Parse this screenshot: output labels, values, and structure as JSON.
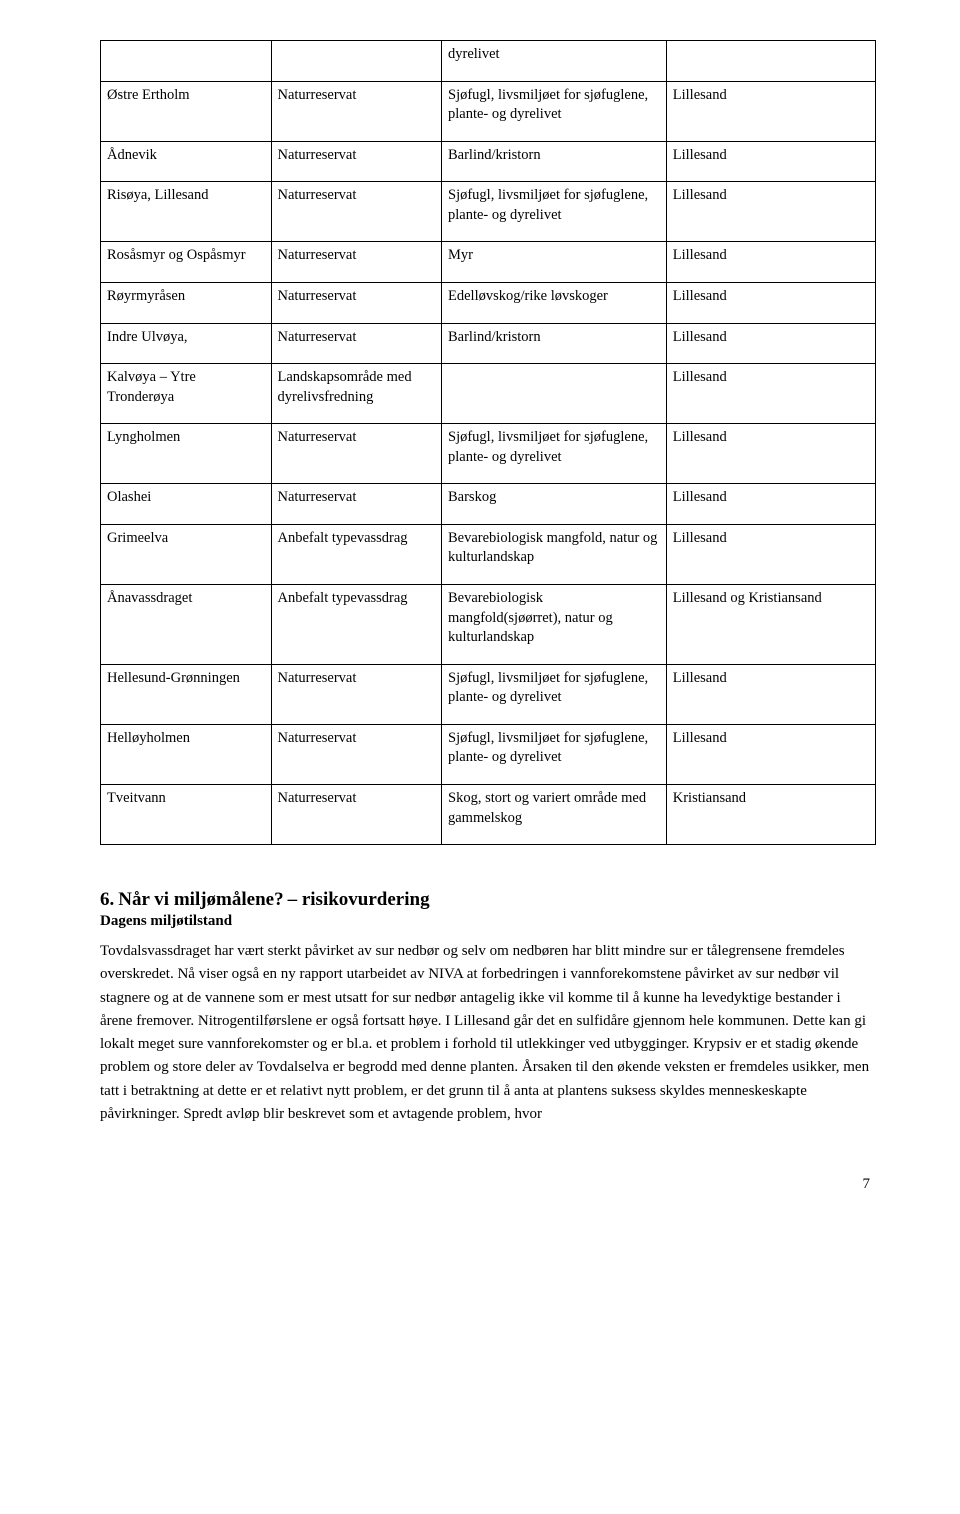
{
  "table": {
    "rows": [
      {
        "c1": "",
        "c2": "",
        "c3": "dyrelivet",
        "c4": ""
      },
      {
        "c1": "Østre Ertholm",
        "c2": "Naturreservat",
        "c3": "Sjøfugl, livsmiljøet for sjøfuglene, plante- og dyrelivet",
        "c4": "Lillesand"
      },
      {
        "c1": "Ådnevik",
        "c2": "Naturreservat",
        "c3": "Barlind/kristorn",
        "c4": "Lillesand"
      },
      {
        "c1": "Risøya, Lillesand",
        "c2": "Naturreservat",
        "c3": "Sjøfugl, livsmiljøet for sjøfuglene, plante- og dyrelivet",
        "c4": "Lillesand"
      },
      {
        "c1": "Rosåsmyr og Ospåsmyr",
        "c2": "Naturreservat",
        "c3": "Myr",
        "c4": "Lillesand"
      },
      {
        "c1": "Røyrmyråsen",
        "c2": "Naturreservat",
        "c3": "Edelløvskog/rike løvskoger",
        "c4": "Lillesand"
      },
      {
        "c1": "Indre Ulvøya,",
        "c2": "Naturreservat",
        "c3": "Barlind/kristorn",
        "c4": "Lillesand"
      },
      {
        "c1": "Kalvøya – Ytre Tronderøya",
        "c2": "Landskapsområde med dyrelivsfredning",
        "c3": "",
        "c4": "Lillesand"
      },
      {
        "c1": "Lyngholmen",
        "c2": "Naturreservat",
        "c3": "Sjøfugl, livsmiljøet for sjøfuglene, plante- og dyrelivet",
        "c4": "Lillesand"
      },
      {
        "c1": "Olashei",
        "c2": "Naturreservat",
        "c3": "Barskog",
        "c4": "Lillesand"
      },
      {
        "c1": "Grimeelva",
        "c2": "Anbefalt typevassdrag",
        "c3": "Bevarebiologisk mangfold, natur og kulturlandskap",
        "c4": "Lillesand"
      },
      {
        "c1": "Ånavassdraget",
        "c2": "Anbefalt typevassdrag",
        "c3": "Bevarebiologisk mangfold(sjøørret), natur og kulturlandskap",
        "c4": "Lillesand og Kristiansand"
      },
      {
        "c1": "Hellesund-Grønningen",
        "c2": "Naturreservat",
        "c3": "Sjøfugl, livsmiljøet for sjøfuglene, plante- og dyrelivet",
        "c4": "Lillesand"
      },
      {
        "c1": "Helløyholmen",
        "c2": "Naturreservat",
        "c3": "Sjøfugl, livsmiljøet for sjøfuglene, plante- og dyrelivet",
        "c4": "Lillesand"
      },
      {
        "c1": "Tveitvann",
        "c2": "Naturreservat",
        "c3": "Skog, stort og variert område med gammelskog",
        "c4": "Kristiansand"
      }
    ]
  },
  "heading": {
    "number": "6.",
    "title": "Når vi miljømålene?",
    "subtitle": "– risikovurdering"
  },
  "subheading": "Dagens miljøtilstand",
  "paragraph": "Tovdalsvassdraget har vært sterkt påvirket av sur nedbør og selv om nedbøren har blitt mindre sur er tålegrensene fremdeles overskredet. Nå viser også en ny rapport utarbeidet av NIVA at forbedringen i vannforekomstene påvirket av sur nedbør vil stagnere og at de vannene som er mest utsatt for sur nedbør antagelig ikke vil komme til å kunne ha levedyktige bestander i årene fremover. Nitrogentilførslene er også fortsatt høye. I Lillesand går det en sulfidåre gjennom hele kommunen. Dette kan gi lokalt meget sure vannforekomster og er bl.a. et problem i forhold til utlekkinger ved utbygginger. Krypsiv er et stadig økende problem og store deler av Tovdalselva er begrodd med denne planten. Årsaken til den økende veksten er fremdeles usikker, men tatt i betraktning at dette er et relativt nytt problem, er det grunn til å anta at plantens suksess skyldes menneskeskapte påvirkninger. Spredt avløp blir beskrevet som et avtagende problem, hvor",
  "page_number": "7"
}
